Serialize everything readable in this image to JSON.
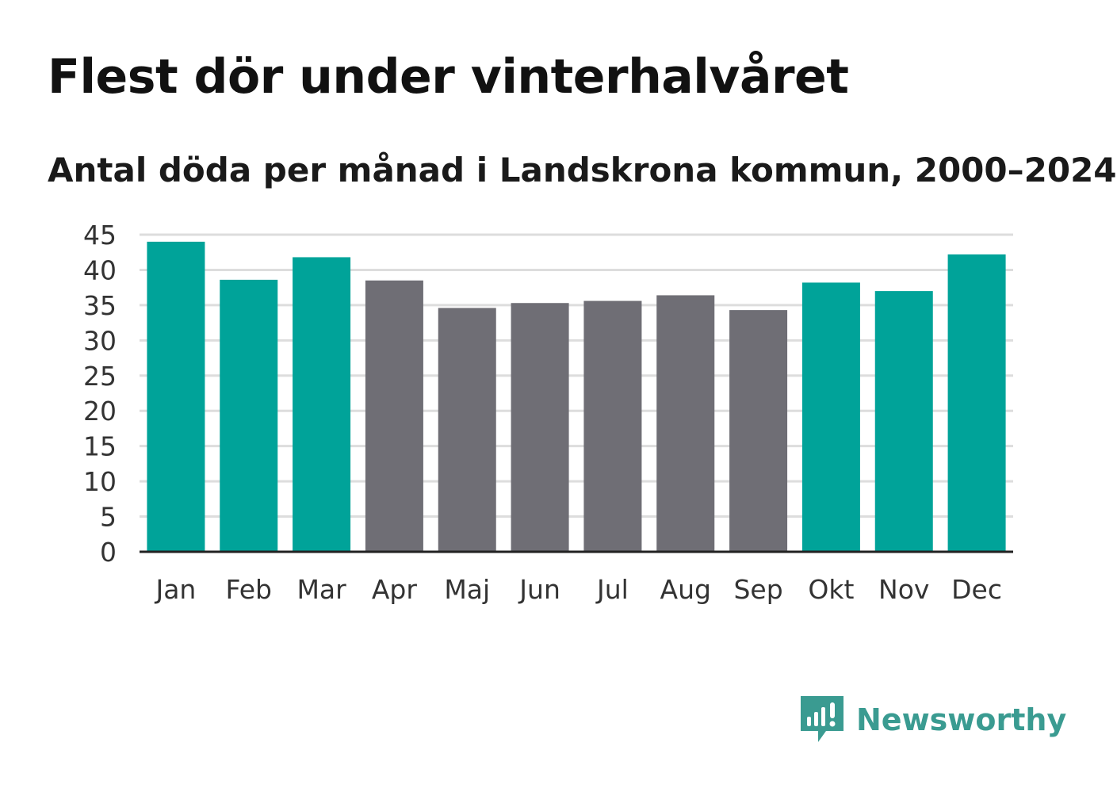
{
  "title": "Flest dör under vinterhalvåret",
  "subtitle": "Antal döda per månad i Landskrona kommun, 2000–2024",
  "brand": {
    "name": "Newsworthy",
    "icon": "newsworthy-logo-icon"
  },
  "colors": {
    "winter": "#00a399",
    "summer": "#6f6e75",
    "grid": "#dddddd",
    "axis": "#222222"
  },
  "chart_data": {
    "type": "bar",
    "title": "Flest dör under vinterhalvåret",
    "subtitle": "Antal döda per månad i Landskrona kommun, 2000–2024",
    "categories": [
      "Jan",
      "Feb",
      "Mar",
      "Apr",
      "Maj",
      "Jun",
      "Jul",
      "Aug",
      "Sep",
      "Okt",
      "Nov",
      "Dec"
    ],
    "values": [
      44,
      38.6,
      41.8,
      38.5,
      34.6,
      35.3,
      35.6,
      36.4,
      34.3,
      38.2,
      37,
      42.2
    ],
    "highlight": [
      true,
      true,
      true,
      false,
      false,
      false,
      false,
      false,
      false,
      true,
      true,
      true
    ],
    "ylim": [
      0,
      45
    ],
    "yticks": [
      0,
      5,
      10,
      15,
      20,
      25,
      30,
      35,
      40,
      45
    ],
    "xlabel": "",
    "ylabel": "",
    "grid": true,
    "legend": "none"
  }
}
